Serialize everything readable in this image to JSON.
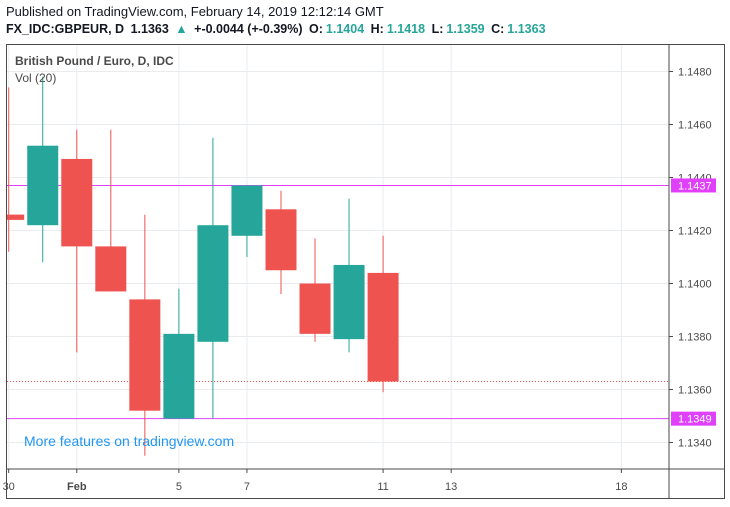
{
  "header": {
    "published": "Published on TradingView.com, February 14, 2019 12:12:14 GMT",
    "symbol": "FX_IDC:GBPEUR, D",
    "last": "1.1363",
    "change_arrow": "▲",
    "change": "+-0.0044 (+-0.39%)",
    "o_label": "O:",
    "o_value": "1.1404",
    "h_label": "H:",
    "h_value": "1.1418",
    "l_label": "L:",
    "l_value": "1.1359",
    "c_label": "C:",
    "c_value": "1.1363"
  },
  "overlay": {
    "title": "British Pound / Euro, D, IDC",
    "volume": "Vol (20)",
    "watermark": "More features on tradingview.com"
  },
  "colors": {
    "up": "#26a69a",
    "down": "#ef5350",
    "line": "#e040fb",
    "grid": "#e9ecef"
  },
  "chart_data": {
    "type": "candlestick",
    "ylim": [
      1.133,
      1.149
    ],
    "yticks": [
      1.148,
      1.146,
      1.144,
      1.142,
      1.14,
      1.138,
      1.136,
      1.134
    ],
    "ytick_labels": [
      "1.1480",
      "1.1460",
      "1.1440",
      "1.1420",
      "1.1400",
      "1.1380",
      "1.1360",
      "1.1340"
    ],
    "xticks": [
      {
        "day": 30,
        "label": "30"
      },
      {
        "day": 32,
        "label": "Feb"
      },
      {
        "day": 35,
        "label": "5"
      },
      {
        "day": 37,
        "label": "7"
      },
      {
        "day": 41,
        "label": "11"
      },
      {
        "day": 43,
        "label": "13"
      },
      {
        "day": 48,
        "label": "18"
      }
    ],
    "xlim": [
      29.95,
      49.4
    ],
    "candles": [
      {
        "day": 30,
        "open": 1.1426,
        "high": 1.1474,
        "low": 1.1412,
        "close": 1.1424
      },
      {
        "day": 31,
        "open": 1.1422,
        "high": 1.1478,
        "low": 1.1408,
        "close": 1.1452
      },
      {
        "day": 32,
        "open": 1.1447,
        "high": 1.1458,
        "low": 1.1374,
        "close": 1.1414
      },
      {
        "day": 33,
        "open": 1.1414,
        "high": 1.1458,
        "low": 1.1397,
        "close": 1.1397
      },
      {
        "day": 34,
        "open": 1.1394,
        "high": 1.1426,
        "low": 1.1335,
        "close": 1.1352
      },
      {
        "day": 35,
        "open": 1.1349,
        "high": 1.1398,
        "low": 1.1349,
        "close": 1.1381
      },
      {
        "day": 36,
        "open": 1.1378,
        "high": 1.1455,
        "low": 1.1349,
        "close": 1.1422
      },
      {
        "day": 37,
        "open": 1.1418,
        "high": 1.1437,
        "low": 1.141,
        "close": 1.1437
      },
      {
        "day": 38,
        "open": 1.1428,
        "high": 1.1435,
        "low": 1.1396,
        "close": 1.1405
      },
      {
        "day": 39,
        "open": 1.14,
        "high": 1.1417,
        "low": 1.1378,
        "close": 1.1381
      },
      {
        "day": 40,
        "open": 1.1379,
        "high": 1.1432,
        "low": 1.1374,
        "close": 1.1407
      },
      {
        "day": 41,
        "open": 1.1404,
        "high": 1.1418,
        "low": 1.1359,
        "close": 1.1363
      }
    ],
    "hlines": [
      {
        "value": 1.1437,
        "label": "1.1437"
      },
      {
        "value": 1.1349,
        "label": "1.1349"
      }
    ],
    "dotted_line": {
      "value": 1.1363
    }
  }
}
